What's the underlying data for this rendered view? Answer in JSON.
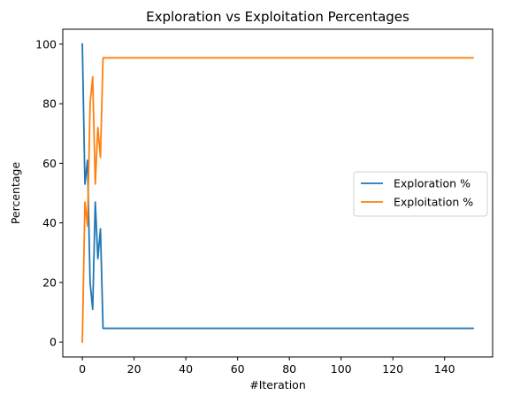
{
  "chart_data": {
    "type": "line",
    "title": "Exploration vs Exploitation Percentages",
    "xlabel": "#Iteration",
    "ylabel": "Percentage",
    "xlim": [
      -7.55,
      158.55
    ],
    "ylim": [
      -5,
      105
    ],
    "xticks": [
      0,
      20,
      40,
      60,
      80,
      100,
      120,
      140
    ],
    "yticks": [
      0,
      20,
      40,
      60,
      80,
      100
    ],
    "grid": false,
    "legend_position": "center-right",
    "series": [
      {
        "name": "Exploration %",
        "color": "#1f77b4",
        "x": [
          0,
          1,
          2,
          3,
          4,
          5,
          6,
          7,
          8,
          151
        ],
        "y": [
          100,
          53,
          61,
          20,
          11,
          47,
          28,
          38,
          4.6,
          4.6
        ]
      },
      {
        "name": "Exploitation %",
        "color": "#ff7f0e",
        "x": [
          0,
          1,
          2,
          3,
          4,
          5,
          6,
          7,
          8,
          151
        ],
        "y": [
          0,
          47,
          39,
          80,
          89,
          53,
          72,
          62,
          95.4,
          95.4
        ]
      }
    ]
  }
}
